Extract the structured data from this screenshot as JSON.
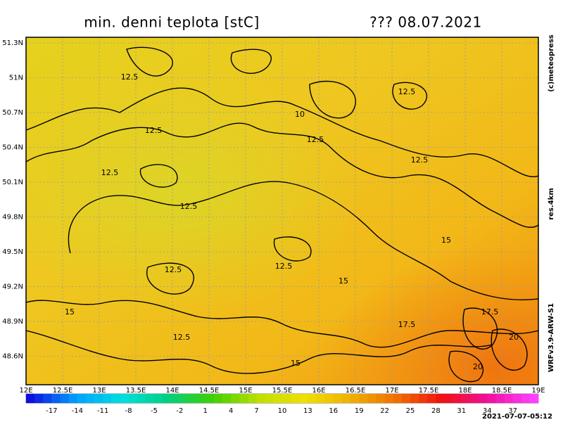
{
  "header": {
    "title": "min. denni teplota [stC]",
    "date": "??? 08.07.2021"
  },
  "map": {
    "lat_labels": [
      "51.3N",
      "51N",
      "50.7N",
      "50.4N",
      "50.1N",
      "49.8N",
      "49.5N",
      "49.2N",
      "48.9N",
      "48.6N"
    ],
    "lon_labels": [
      "12E",
      "12.5E",
      "13E",
      "13.5E",
      "14E",
      "14.5E",
      "15E",
      "15.5E",
      "16E",
      "16.5E",
      "17E",
      "17.5E",
      "18E",
      "18.5E",
      "19E"
    ],
    "contour_labels": [
      "12.5",
      "12.5",
      "10",
      "12.5",
      "12.5",
      "12.5",
      "12.5",
      "12.5",
      "15",
      "12.5",
      "12.5",
      "15",
      "15",
      "17.5",
      "17.5",
      "12.5",
      "20",
      "15",
      "20"
    ]
  },
  "colorbar": {
    "range": [
      -20,
      40
    ],
    "ticks": [
      -17,
      -14,
      -11,
      -8,
      -5,
      -2,
      1,
      4,
      7,
      10,
      13,
      16,
      19,
      22,
      25,
      28,
      31,
      34,
      37
    ],
    "colors": [
      "#1010e0",
      "#00a0ff",
      "#00e0e0",
      "#00d080",
      "#40d000",
      "#c0e000",
      "#f0e000",
      "#f0b000",
      "#f07000",
      "#f01010",
      "#f010a0",
      "#ff40ff"
    ]
  },
  "side": {
    "copyright": "(c)meteopress",
    "resolution": "res.4km",
    "model": "WRFv3.9-ARW-S1"
  },
  "timestamp": "2021-07-07-05:12"
}
